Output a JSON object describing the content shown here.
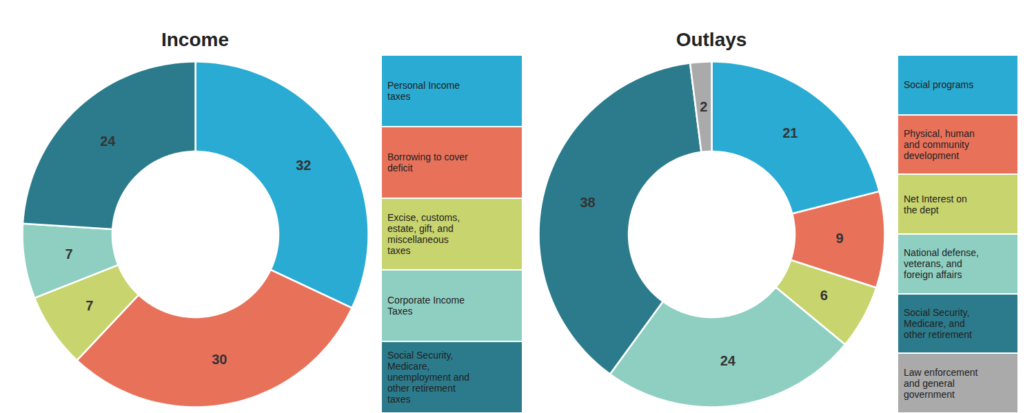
{
  "chart_data": [
    {
      "type": "pie",
      "title": "Income",
      "categories": [
        "Personal Income\ntaxes",
        "Borrowing to cover\ndeficit",
        "Excise, customs,\nestate, gift, and\nmiscellaneous\ntaxes",
        "Corporate Income\nTaxes",
        "Social Security,\nMedicare,\nunemployment and\nother retirement\ntaxes"
      ],
      "values": [
        32,
        30,
        7,
        7,
        24
      ],
      "colors": [
        "#29ABD4",
        "#E8715A",
        "#C8D46E",
        "#8ECFC2",
        "#2B7B8C"
      ],
      "data_labels": true,
      "legend": "right"
    },
    {
      "type": "pie",
      "title": "Outlays",
      "categories": [
        "Social programs",
        "Physical, human\nand community\ndevelopment",
        "Net Interest on\nthe dept",
        "National defense,\nveterans, and\nforeign affairs",
        "Social Security,\nMedicare, and\nother retirement",
        "Law enforcement\nand general\ngovernment"
      ],
      "values": [
        21,
        9,
        6,
        24,
        38,
        2
      ],
      "colors": [
        "#29ABD4",
        "#E8715A",
        "#C8D46E",
        "#8ECFC2",
        "#2B7B8C",
        "#AAAAAA"
      ],
      "data_labels": true,
      "legend": "right"
    }
  ]
}
